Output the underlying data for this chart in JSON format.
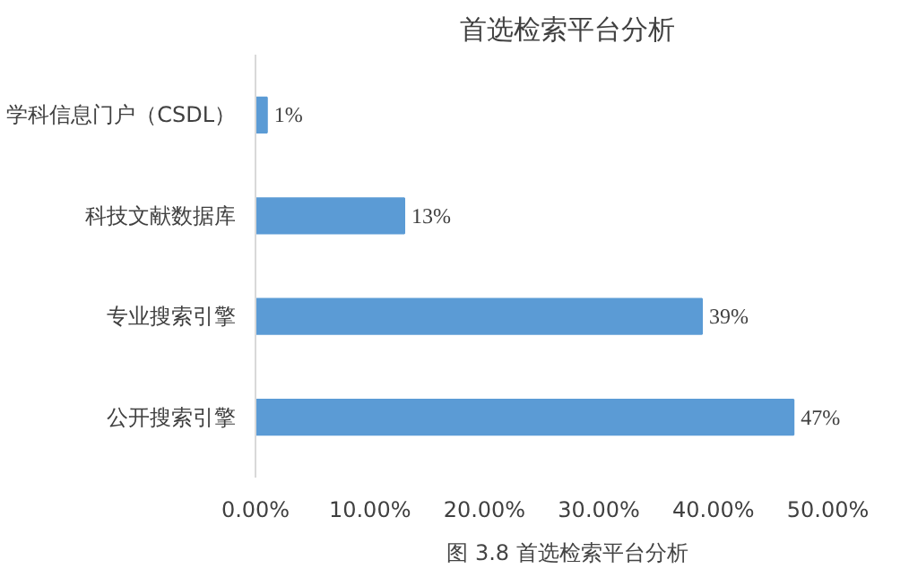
{
  "chart_data": {
    "type": "bar",
    "orientation": "horizontal",
    "title": "首选检索平台分析",
    "categories": [
      "学科信息门户（CSDL）",
      "科技文献数据库",
      "专业搜索引擎",
      "公开搜索引擎"
    ],
    "values": [
      1,
      13,
      39,
      47
    ],
    "color": "#5b9bd5",
    "value_labels": [
      "1%",
      "13%",
      "39%",
      "47%"
    ],
    "xlim": [
      0,
      50
    ],
    "xticks": [
      {
        "value": 0,
        "label": "0.00%"
      },
      {
        "value": 10,
        "label": "10.00%"
      },
      {
        "value": 20,
        "label": "20.00%"
      },
      {
        "value": 30,
        "label": "30.00%"
      },
      {
        "value": 40,
        "label": "40.00%"
      },
      {
        "value": 50,
        "label": "50.00%"
      }
    ],
    "grid": false,
    "annotations": [
      "图 3.8 首选检索平台分析"
    ]
  }
}
